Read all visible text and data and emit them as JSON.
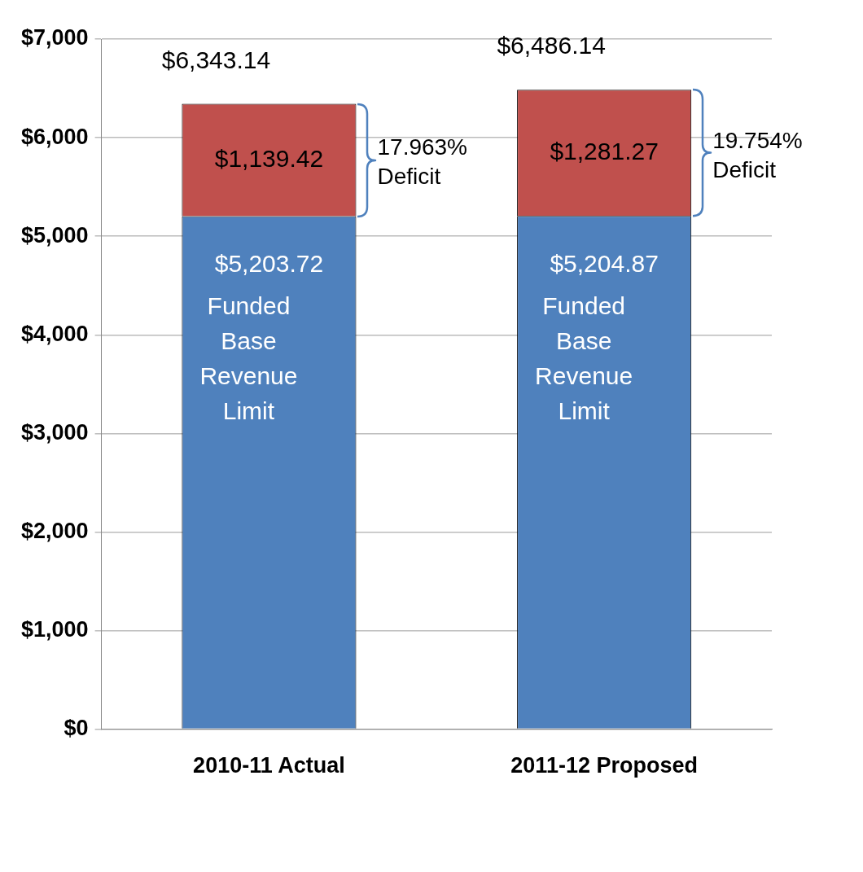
{
  "chart_data": {
    "type": "bar",
    "stacked": true,
    "categories": [
      "2010-11 Actual",
      "2011-12 Proposed"
    ],
    "series": [
      {
        "name": "Funded Base Revenue Limit",
        "color": "#4f81bd",
        "values": [
          5203.72,
          5204.87
        ],
        "value_labels": [
          "$5,203.72",
          "$5,204.87"
        ]
      },
      {
        "color": "#c0504d",
        "values": [
          1139.42,
          1281.27
        ],
        "value_labels": [
          "$1,139.42",
          "$1,281.27"
        ]
      }
    ],
    "totals": [
      "$6,343.14",
      "$6,486.14"
    ],
    "ylim": [
      0,
      7000
    ],
    "yticks": [
      {
        "value": 0,
        "label": "$0"
      },
      {
        "value": 1000,
        "label": "$1,000"
      },
      {
        "value": 2000,
        "label": "$2,000"
      },
      {
        "value": 3000,
        "label": "$3,000"
      },
      {
        "value": 4000,
        "label": "$4,000"
      },
      {
        "value": 5000,
        "label": "$5,000"
      },
      {
        "value": 6000,
        "label": "$6,000"
      },
      {
        "value": 7000,
        "label": "$7,000"
      }
    ],
    "grid": "y",
    "legend": false,
    "annotations": [
      "17.963% Deficit",
      "19.754% Deficit"
    ]
  }
}
